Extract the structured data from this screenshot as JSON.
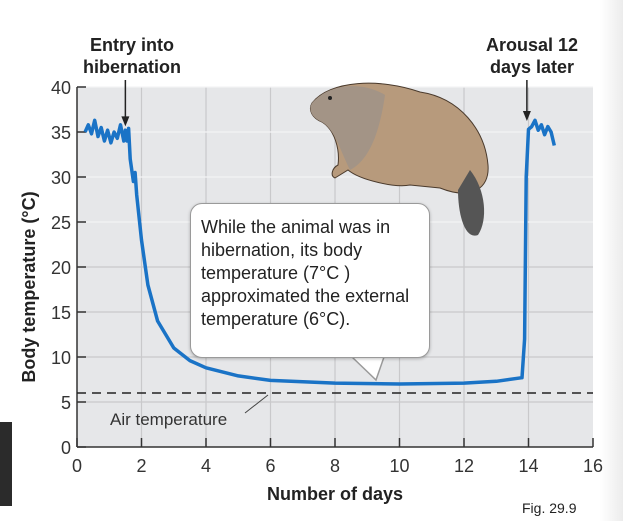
{
  "chart_data": {
    "type": "line",
    "xlabel": "Number of days",
    "ylabel": "Body temperature (°C)",
    "xlim": [
      0,
      16
    ],
    "ylim": [
      0,
      40
    ],
    "xticks": [
      "0",
      "2",
      "4",
      "6",
      "8",
      "10",
      "12",
      "14",
      "16"
    ],
    "yticks": [
      "0",
      "5",
      "10",
      "15",
      "20",
      "25",
      "30",
      "35",
      "40"
    ],
    "grid": true,
    "series": [
      {
        "color": "#1a73c6",
        "x": [
          0.25,
          0.35,
          0.45,
          0.55,
          0.65,
          0.75,
          0.85,
          0.95,
          1.05,
          1.15,
          1.25,
          1.35,
          1.45,
          1.5,
          1.55,
          1.6,
          1.65,
          1.75,
          1.8,
          1.85,
          2.0,
          2.2,
          2.5,
          3.0,
          3.5,
          4.0,
          5.0,
          6.0,
          8.0,
          10.0,
          12.0,
          13.0,
          13.8,
          13.88,
          13.93,
          14.0,
          14.1,
          14.2,
          14.3,
          14.4,
          14.5,
          14.6,
          14.7,
          14.8
        ],
        "y": [
          35,
          35.8,
          34.8,
          36.3,
          34.5,
          35.5,
          34,
          35.2,
          33.8,
          35,
          34.3,
          35.8,
          34,
          35.2,
          34,
          35.4,
          32,
          29.5,
          30.5,
          28,
          23,
          18,
          14,
          11,
          9.6,
          8.8,
          7.9,
          7.4,
          7.1,
          7.0,
          7.1,
          7.3,
          7.7,
          12,
          30,
          35.3,
          35.6,
          36.3,
          35.2,
          35.8,
          34.7,
          35.6,
          35,
          33.5
        ]
      }
    ],
    "reference_line": {
      "label": "Air temperature",
      "y": 6,
      "style": "dashed"
    },
    "annotations": {
      "entry": {
        "text": "Entry into hibernation",
        "line1": "Entry into",
        "line2": "hibernation",
        "x": 1.5
      },
      "arousal": {
        "text": "Arousal 12 days later",
        "line1": "Arousal 12",
        "line2": "days later",
        "x": 13.95
      },
      "callout": "While the animal was in hibernation, its body temperature (7°C ) approximated the external temperature (6°C)."
    }
  },
  "figure_label": "Fig. 29.9",
  "colors": {
    "plot_bg": "#e6e7e9",
    "grid": "#c9c9cb",
    "line": "#1a73c6"
  }
}
